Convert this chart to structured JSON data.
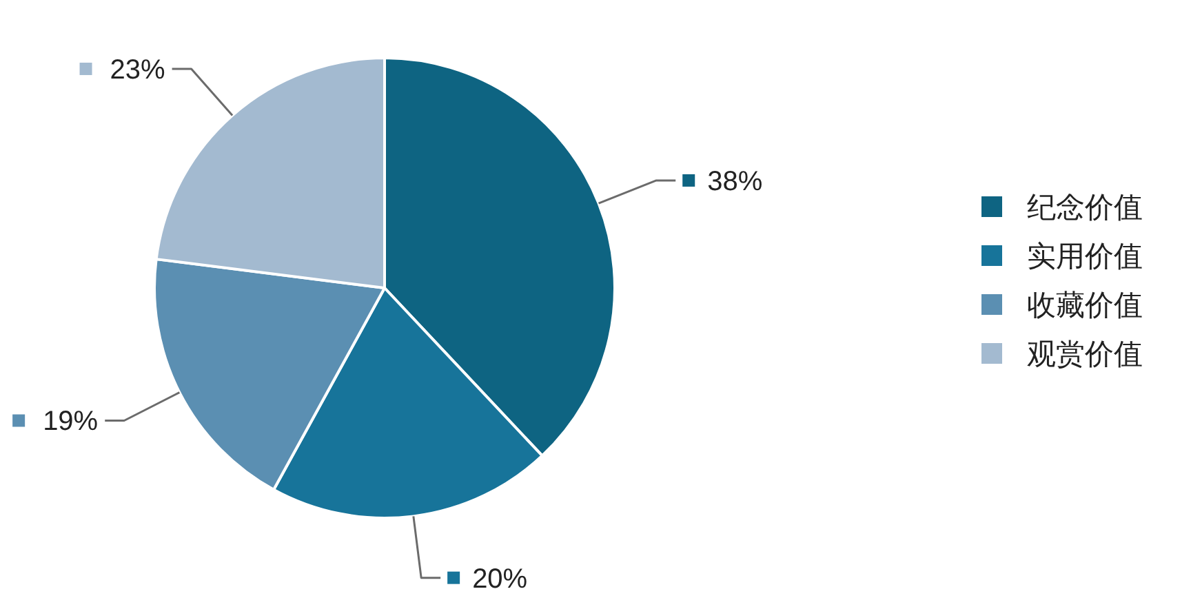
{
  "chart_data": {
    "type": "pie",
    "categories": [
      "纪念价值",
      "实用价值",
      "收藏价值",
      "观赏价值"
    ],
    "values": [
      38,
      20,
      19,
      23
    ],
    "colors": [
      "#0e6482",
      "#17749a",
      "#5b8fb2",
      "#a3bad0"
    ],
    "value_labels": [
      "38%",
      "20%",
      "19%",
      "23%"
    ],
    "legend": "right"
  }
}
